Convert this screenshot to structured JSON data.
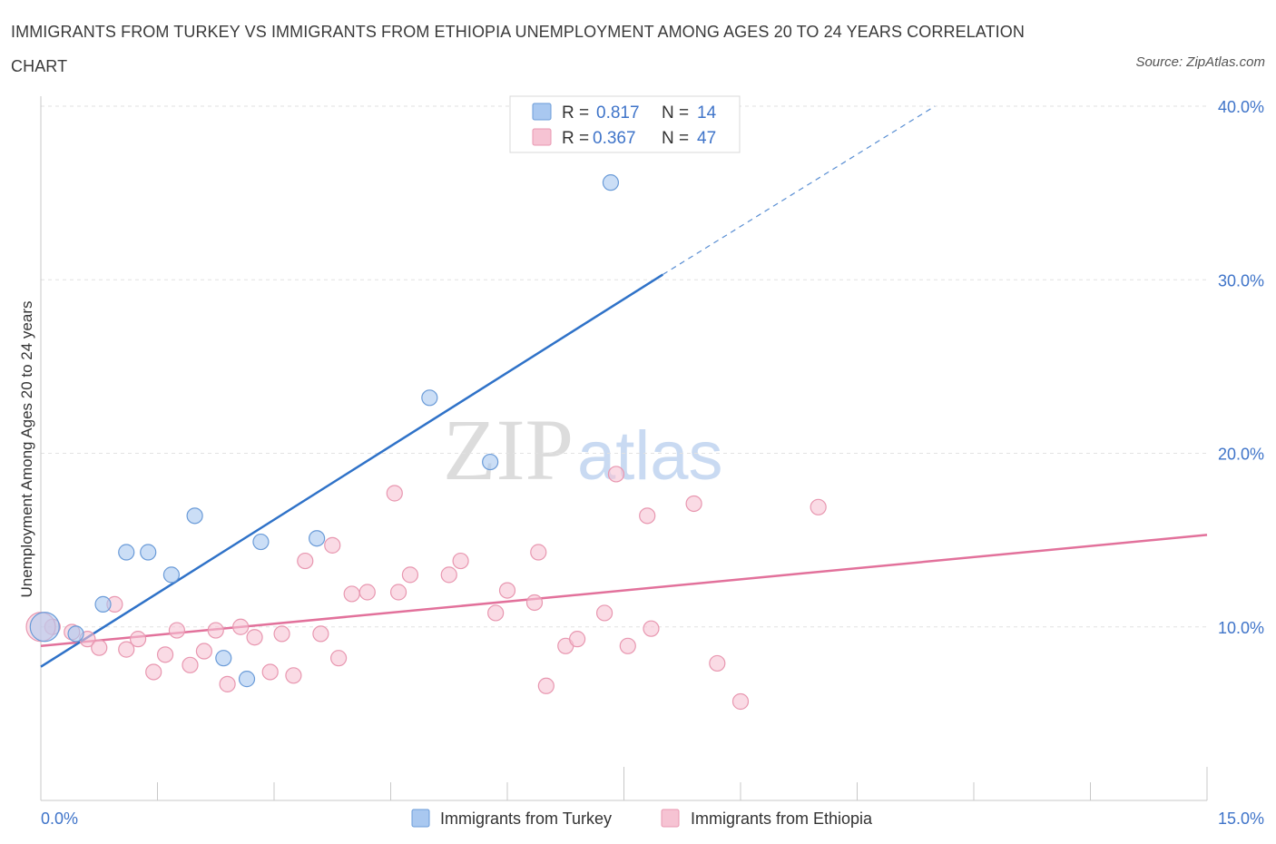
{
  "header": {
    "title": "IMMIGRANTS FROM TURKEY VS IMMIGRANTS FROM ETHIOPIA UNEMPLOYMENT AMONG AGES 20 TO 24 YEARS CORRELATION CHART",
    "source": "Source: ZipAtlas.com"
  },
  "watermark": {
    "zip": "ZIP",
    "atlas": "atlas"
  },
  "chart_data": {
    "type": "scatter",
    "title": "IMMIGRANTS FROM TURKEY VS IMMIGRANTS FROM ETHIOPIA UNEMPLOYMENT AMONG AGES 20 TO 24 YEARS CORRELATION CHART",
    "xlabel": "",
    "ylabel": "Unemployment Among Ages 20 to 24 years",
    "xlim": [
      0,
      15
    ],
    "ylim": [
      0,
      40
    ],
    "x_tick_labels": [
      "0.0%",
      "15.0%"
    ],
    "y_tick_labels": [
      "10.0%",
      "20.0%",
      "30.0%",
      "40.0%"
    ],
    "y_ticks": [
      10,
      20,
      30,
      40
    ],
    "legend": [
      {
        "r_label": "R =",
        "r_value": "0.817",
        "n_label": "N =",
        "n_value": "14"
      },
      {
        "r_label": "R =",
        "r_value": "0.367",
        "n_label": "N =",
        "n_value": "47"
      }
    ],
    "series": [
      {
        "name": "Immigrants from Turkey",
        "color": "#a9c8f0",
        "stroke": "#6a9bd8",
        "trend_color": "#2f72c8",
        "points": [
          [
            0.05,
            10.0
          ],
          [
            0.45,
            9.6
          ],
          [
            0.8,
            11.3
          ],
          [
            1.1,
            14.3
          ],
          [
            1.38,
            14.3
          ],
          [
            1.68,
            13.0
          ],
          [
            1.98,
            16.4
          ],
          [
            2.35,
            8.2
          ],
          [
            2.65,
            7.0
          ],
          [
            2.83,
            14.9
          ],
          [
            3.55,
            15.1
          ],
          [
            5.0,
            23.2
          ],
          [
            5.78,
            19.5
          ],
          [
            7.33,
            35.6
          ]
        ],
        "trend": {
          "x0": 0,
          "y0": 7.7,
          "x1": 8.0,
          "y1": 30.3,
          "dash_x1": 11.5,
          "dash_y1": 40.0
        }
      },
      {
        "name": "Immigrants from Ethiopia",
        "color": "#f6c3d3",
        "stroke": "#e897b0",
        "trend_color": "#e2719b",
        "points": [
          [
            0.15,
            10.0
          ],
          [
            0.4,
            9.7
          ],
          [
            0.6,
            9.3
          ],
          [
            0.75,
            8.8
          ],
          [
            0.95,
            11.3
          ],
          [
            1.1,
            8.7
          ],
          [
            1.25,
            9.3
          ],
          [
            1.45,
            7.4
          ],
          [
            1.6,
            8.4
          ],
          [
            1.75,
            9.8
          ],
          [
            1.92,
            7.8
          ],
          [
            2.1,
            8.6
          ],
          [
            2.25,
            9.8
          ],
          [
            2.4,
            6.7
          ],
          [
            2.57,
            10.0
          ],
          [
            2.75,
            9.4
          ],
          [
            2.95,
            7.4
          ],
          [
            3.1,
            9.6
          ],
          [
            3.25,
            7.2
          ],
          [
            3.4,
            13.8
          ],
          [
            3.6,
            9.6
          ],
          [
            3.83,
            8.2
          ],
          [
            3.75,
            14.7
          ],
          [
            4.0,
            11.9
          ],
          [
            4.2,
            12.0
          ],
          [
            4.55,
            17.7
          ],
          [
            4.6,
            12.0
          ],
          [
            4.75,
            13.0
          ],
          [
            5.25,
            13.0
          ],
          [
            5.4,
            13.8
          ],
          [
            5.85,
            10.8
          ],
          [
            6.0,
            12.1
          ],
          [
            6.35,
            11.4
          ],
          [
            6.4,
            14.3
          ],
          [
            6.5,
            6.6
          ],
          [
            6.75,
            8.9
          ],
          [
            6.9,
            9.3
          ],
          [
            7.25,
            10.8
          ],
          [
            7.4,
            18.8
          ],
          [
            7.55,
            8.9
          ],
          [
            7.8,
            16.4
          ],
          [
            7.85,
            9.9
          ],
          [
            8.4,
            17.1
          ],
          [
            8.7,
            7.9
          ],
          [
            9.0,
            5.7
          ],
          [
            10.0,
            16.9
          ],
          [
            0.0,
            10.0
          ]
        ],
        "trend": {
          "x0": 0,
          "y0": 8.9,
          "x1": 15.0,
          "y1": 15.3
        }
      }
    ]
  },
  "bottom_legend": [
    {
      "label": "Immigrants from Turkey"
    },
    {
      "label": "Immigrants from Ethiopia"
    }
  ]
}
